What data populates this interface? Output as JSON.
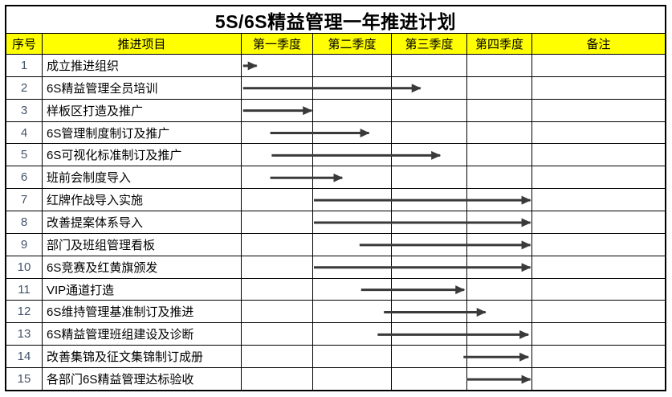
{
  "chart_data": {
    "type": "table",
    "title": "5S/6S精益管理一年推进计划",
    "columns": [
      "序号",
      "推进项目",
      "第一季度",
      "第二季度",
      "第三季度",
      "第四季度",
      "备注"
    ],
    "quarter_labels": [
      "第一季度",
      "第二季度",
      "第三季度",
      "第四季度"
    ],
    "arrow_unit_note": "arrow_span values are in quarter units: 0 = start of Q1, 4 = end of Q4",
    "rows": [
      {
        "no": "1",
        "project": "成立推进组织",
        "arrow_span": [
          0.02,
          0.21
        ],
        "remark": ""
      },
      {
        "no": "2",
        "project": "6S精益管理全员培训",
        "arrow_span": [
          0.02,
          2.38
        ],
        "remark": ""
      },
      {
        "no": "3",
        "project": "样板区打造及推广",
        "arrow_span": [
          0.02,
          0.98
        ],
        "remark": ""
      },
      {
        "no": "4",
        "project": "6S管理制度制订及推广",
        "arrow_span": [
          0.4,
          1.71
        ],
        "remark": ""
      },
      {
        "no": "5",
        "project": "6S可视化标准制订及推广",
        "arrow_span": [
          0.42,
          2.64
        ],
        "remark": ""
      },
      {
        "no": "6",
        "project": "班前会制度导入",
        "arrow_span": [
          0.4,
          1.37
        ],
        "remark": ""
      },
      {
        "no": "7",
        "project": "红牌作战导入实施",
        "arrow_span": [
          1.01,
          3.97
        ],
        "remark": ""
      },
      {
        "no": "8",
        "project": "改善提案体系导入",
        "arrow_span": [
          1.01,
          3.97
        ],
        "remark": ""
      },
      {
        "no": "9",
        "project": "部门及班组管理看板",
        "arrow_span": [
          1.59,
          3.97
        ],
        "remark": ""
      },
      {
        "no": "10",
        "project": "6S竞赛及红黄旗颁发",
        "arrow_span": [
          1.01,
          3.97
        ],
        "remark": ""
      },
      {
        "no": "11",
        "project": "VIP通道打造",
        "arrow_span": [
          1.61,
          2.96
        ],
        "remark": ""
      },
      {
        "no": "12",
        "project": "6S维持管理基准制订及推进",
        "arrow_span": [
          1.9,
          3.28
        ],
        "remark": ""
      },
      {
        "no": "13",
        "project": "6S精益管理班组建设及诊断",
        "arrow_span": [
          1.82,
          3.94
        ],
        "remark": ""
      },
      {
        "no": "14",
        "project": "改善集锦及征文集锦制订成册",
        "arrow_span": [
          2.95,
          3.94
        ],
        "remark": ""
      },
      {
        "no": "15",
        "project": "各部门6S精益管理达标验收",
        "arrow_span": [
          2.99,
          3.97
        ],
        "remark": ""
      }
    ],
    "colors": {
      "header_bg": "#FFFF00",
      "grid_line": "#000000",
      "arrow": "#3A3A3A",
      "index_text": "#44546A",
      "title_text": "#000000"
    }
  }
}
